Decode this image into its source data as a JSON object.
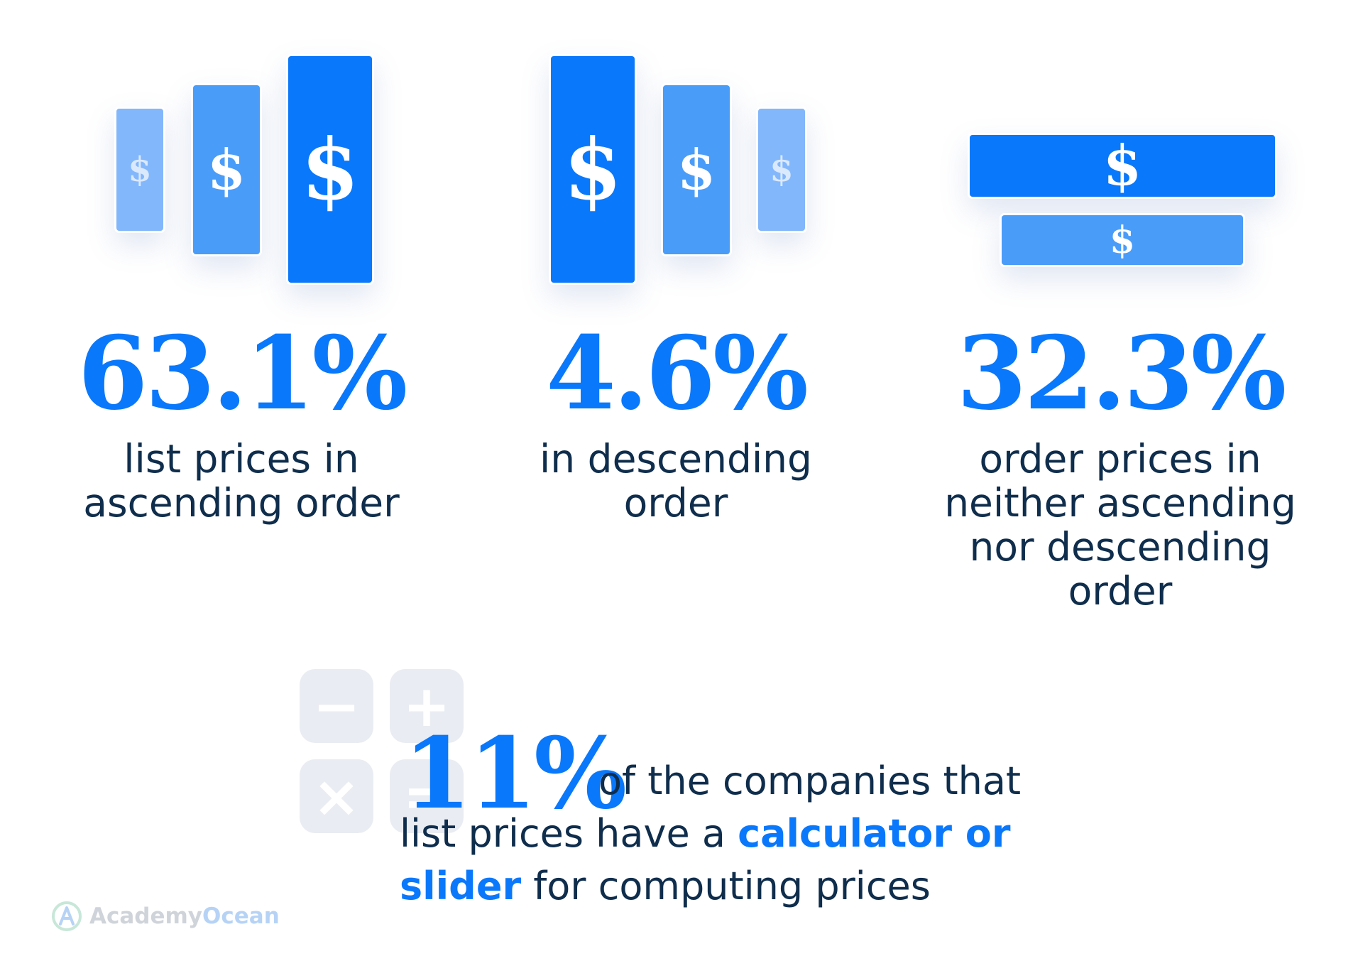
{
  "stats": [
    {
      "value": "63.1%",
      "line1": "list prices in",
      "line2": "ascending order"
    },
    {
      "value": "4.6%",
      "line1": "in descending",
      "line2": "order"
    },
    {
      "value": "32.3%",
      "line1": "order prices in",
      "line2": "neither ascending",
      "line3": "nor descending",
      "line4": "order"
    }
  ],
  "dollar_symbol": "$",
  "calculator": {
    "keys": [
      "−",
      "+",
      "×",
      "="
    ]
  },
  "highlight": {
    "value": "11%",
    "text_line1": "of the companies that",
    "text_line2_a": "list prices have a ",
    "text_line2_b": "calculator or",
    "text_line3_a": "slider",
    "text_line3_b": " for computing prices"
  },
  "brand": {
    "part1": "Academy",
    "part2": "Ocean"
  },
  "colors": {
    "primary": "#0a78fb",
    "medium": "#4a9cf9",
    "light": "#82b7fb",
    "text": "#0f2d4c"
  }
}
